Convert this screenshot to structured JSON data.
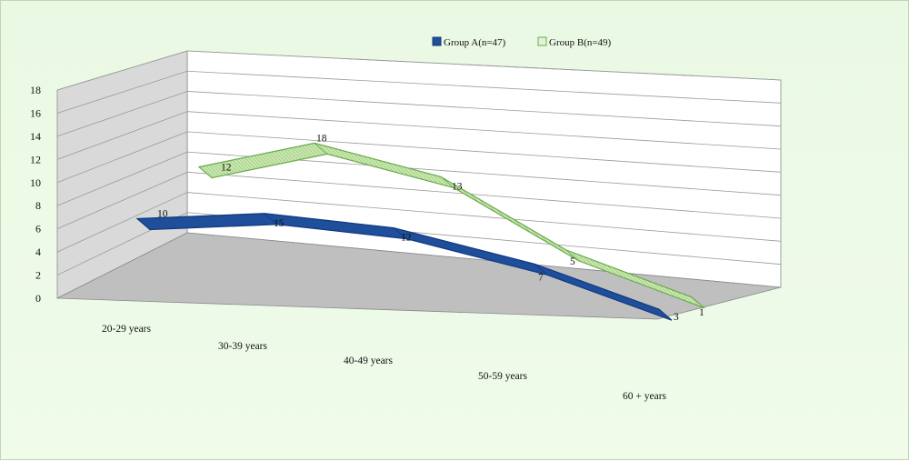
{
  "chart_data": {
    "type": "line",
    "title": "",
    "xlabel": "",
    "ylabel": "",
    "categories": [
      "20-29 years",
      "30-39 years",
      "40-49 years",
      "50-59 years",
      "60 + years"
    ],
    "y_ticks": [
      "0",
      "2",
      "4",
      "6",
      "8",
      "10",
      "12",
      "14",
      "16",
      "18"
    ],
    "ylim": [
      0,
      18
    ],
    "grid": true,
    "legend_position": "top-right",
    "series": [
      {
        "name": "Group A(n=47)",
        "values": [
          10,
          15,
          12,
          7,
          3
        ],
        "color": "#1f4e9a"
      },
      {
        "name": "Group B(n=49)",
        "values": [
          12,
          18,
          13,
          5,
          1
        ],
        "color": "#b5d89a"
      }
    ]
  },
  "colors": {
    "background": "#eaf9e3",
    "back_wall": "#ffffff",
    "side_wall": "#d9d9d9",
    "floor": "#bfbfbf",
    "gridline": "#9a9a9a",
    "group_a_edge": "#0f3a7e",
    "group_b_edge": "#6aaa4a"
  }
}
